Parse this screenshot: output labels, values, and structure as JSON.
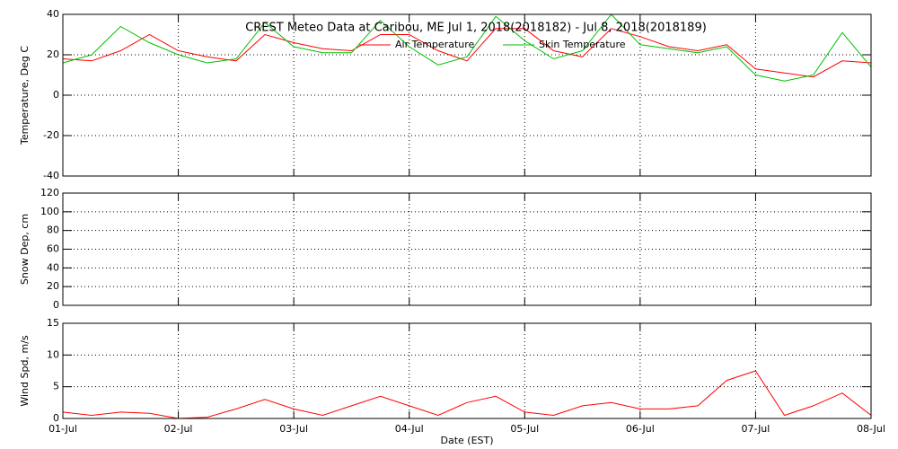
{
  "chart_data": [
    {
      "type": "line",
      "title": "CREST Meteo Data at Caribou, ME   Jul  1, 2018(2018182) - Jul  8, 2018(2018189)",
      "y_label": "Temperature, Deg C",
      "x": [
        0,
        0.25,
        0.5,
        0.75,
        1,
        1.25,
        1.5,
        1.75,
        2,
        2.25,
        2.5,
        2.75,
        3,
        3.25,
        3.5,
        3.75,
        4,
        4.25,
        4.5,
        4.75,
        5,
        5.25,
        5.5,
        5.75,
        6,
        6.25,
        6.5,
        6.75,
        7
      ],
      "series": [
        {
          "name": "Air Temperature",
          "color": "#ff0000",
          "values": [
            18,
            17,
            22,
            30,
            22,
            19,
            17,
            30,
            26,
            23,
            22,
            30,
            30,
            22,
            17,
            33,
            33,
            22,
            19,
            33,
            29,
            24,
            22,
            25,
            13,
            11,
            9,
            17,
            16
          ]
        },
        {
          "name": "Skin Temperature",
          "color": "#00c000",
          "values": [
            16,
            20,
            34,
            26,
            20,
            16,
            18,
            36,
            24,
            21,
            21,
            37,
            24,
            15,
            19,
            39,
            27,
            18,
            22,
            40,
            25,
            23,
            21,
            24,
            10,
            7,
            10,
            31,
            14
          ]
        }
      ],
      "xlim": [
        0,
        7
      ],
      "xticks": [
        0,
        1,
        2,
        3,
        4,
        5,
        6,
        7
      ],
      "ylim": [
        -40,
        40
      ],
      "yticks": [
        -40,
        -20,
        0,
        20,
        40
      ],
      "grid": true
    },
    {
      "type": "line",
      "y_label": "Snow Dep, cm",
      "xlim": [
        0,
        7
      ],
      "xticks": [
        0,
        1,
        2,
        3,
        4,
        5,
        6,
        7
      ],
      "ylim": [
        0,
        120
      ],
      "yticks": [
        0,
        20,
        40,
        60,
        80,
        100,
        120
      ],
      "grid": true
    },
    {
      "type": "line",
      "y_label": "Wind Spd, m/s",
      "x_label": "Date (EST)",
      "x": [
        0,
        0.25,
        0.5,
        0.75,
        1,
        1.25,
        1.5,
        1.75,
        2,
        2.25,
        2.5,
        2.75,
        3,
        3.25,
        3.5,
        3.75,
        4,
        4.25,
        4.5,
        4.75,
        5,
        5.25,
        5.5,
        5.75,
        6,
        6.25,
        6.5,
        6.75,
        7
      ],
      "series": [
        {
          "color": "#ff0000",
          "values": [
            1,
            0.5,
            1,
            0.8,
            0,
            0.2,
            1.5,
            3,
            1.5,
            0.5,
            2,
            3.5,
            2,
            0.5,
            2.5,
            3.5,
            1,
            0.5,
            2,
            2.5,
            1.5,
            1.5,
            2,
            6,
            7.5,
            0.5,
            2,
            4,
            0.5
          ]
        }
      ],
      "xlim": [
        0,
        7
      ],
      "xticks": [
        {
          "value": 0,
          "label": "01-Jul"
        },
        {
          "value": 1,
          "label": "02-Jul"
        },
        {
          "value": 2,
          "label": "03-Jul"
        },
        {
          "value": 3,
          "label": "04-Jul"
        },
        {
          "value": 4,
          "label": "05-Jul"
        },
        {
          "value": 5,
          "label": "06-Jul"
        },
        {
          "value": 6,
          "label": "07-Jul"
        },
        {
          "value": 7,
          "label": "08-Jul"
        }
      ],
      "ylim": [
        0,
        15
      ],
      "yticks": [
        0,
        5,
        10,
        15
      ],
      "grid": true
    }
  ]
}
